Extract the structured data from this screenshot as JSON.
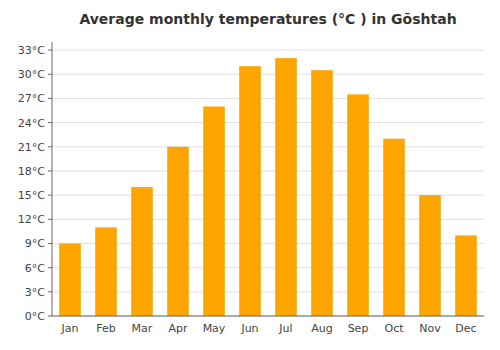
{
  "chart_data": {
    "type": "bar",
    "title": "Average monthly temperatures (°C ) in Gōshtah",
    "categories": [
      "Jan",
      "Feb",
      "Mar",
      "Apr",
      "May",
      "Jun",
      "Jul",
      "Aug",
      "Sep",
      "Oct",
      "Nov",
      "Dec"
    ],
    "values": [
      9,
      11,
      16,
      21,
      26,
      31,
      32,
      30.5,
      27.5,
      22,
      15,
      10
    ],
    "color": "#FFA500",
    "ylim": [
      0,
      34
    ],
    "yticks": [
      {
        "value": 0,
        "label": "0°C"
      },
      {
        "value": 3,
        "label": "3°C"
      },
      {
        "value": 6,
        "label": "6°C"
      },
      {
        "value": 9,
        "label": "9°C"
      },
      {
        "value": 12,
        "label": "12°C"
      },
      {
        "value": 15,
        "label": "15°C"
      },
      {
        "value": 18,
        "label": "18°C"
      },
      {
        "value": 21,
        "label": "21°C"
      },
      {
        "value": 24,
        "label": "24°C"
      },
      {
        "value": 27,
        "label": "27°C"
      },
      {
        "value": 30,
        "label": "30°C"
      },
      {
        "value": 33,
        "label": "33°C"
      }
    ],
    "grid": true
  }
}
